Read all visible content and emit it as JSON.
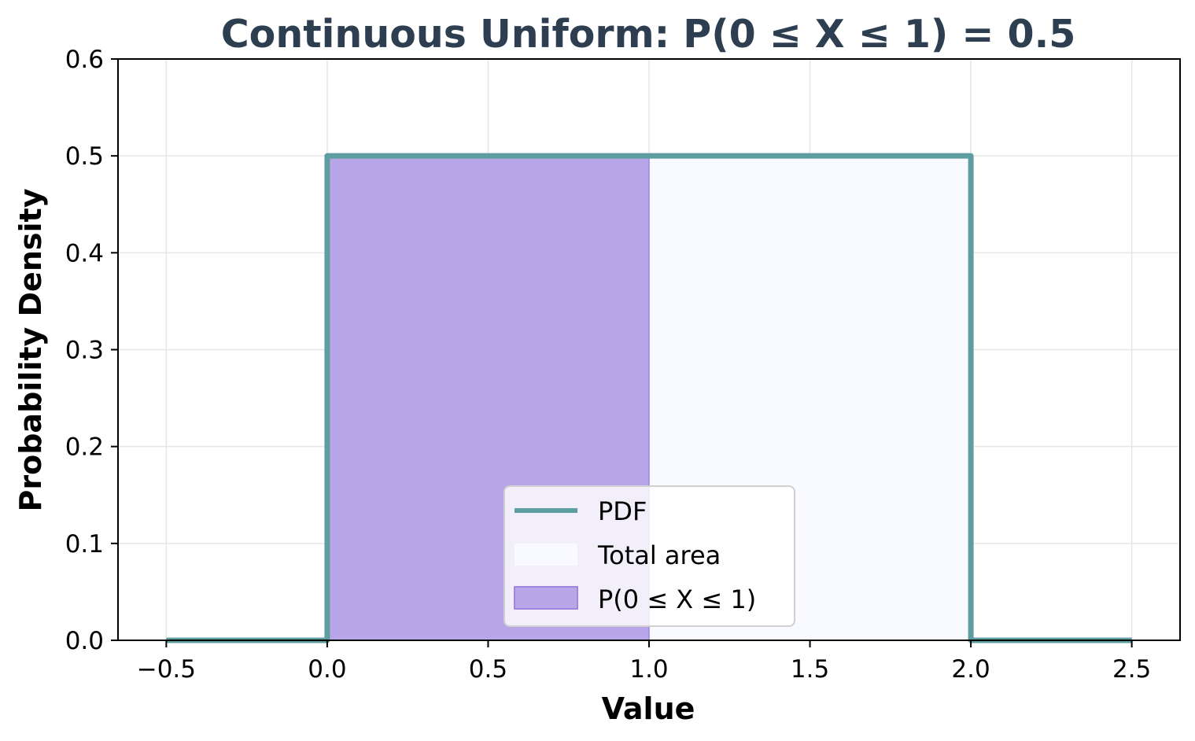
{
  "chart_data": {
    "type": "area",
    "title": "Continuous Uniform: P(0 ≤ X ≤ 1) = 0.5",
    "xlabel": "Value",
    "ylabel": "Probability Density",
    "xlim": [
      -0.65,
      2.65
    ],
    "ylim": [
      0,
      0.6
    ],
    "xticks": [
      -0.5,
      0.0,
      0.5,
      1.0,
      1.5,
      2.0,
      2.5
    ],
    "xtick_labels": [
      "−0.5",
      "0.0",
      "0.5",
      "1.0",
      "1.5",
      "2.0",
      "2.5"
    ],
    "yticks": [
      0.0,
      0.1,
      0.2,
      0.3,
      0.4,
      0.5,
      0.6
    ],
    "ytick_labels": [
      "0.0",
      "0.1",
      "0.2",
      "0.3",
      "0.4",
      "0.5",
      "0.6"
    ],
    "grid": true,
    "legend_position": "lower-center",
    "series": [
      {
        "name": "PDF",
        "kind": "line",
        "color": "#5f9ea0",
        "x": [
          -0.5,
          0.0,
          0.0,
          2.0,
          2.0,
          2.5
        ],
        "y": [
          0.0,
          0.0,
          0.5,
          0.5,
          0.0,
          0.0
        ]
      },
      {
        "name": "Total area",
        "kind": "area",
        "color": "#f8faff",
        "x": [
          0.0,
          2.0
        ],
        "y": [
          0.5,
          0.5
        ]
      },
      {
        "name": "P(0 ≤ X ≤ 1)",
        "kind": "area",
        "color": "#b9a6e8",
        "edge_color": "#9f86de",
        "x": [
          0.0,
          1.0
        ],
        "y": [
          0.5,
          0.5
        ]
      }
    ]
  }
}
